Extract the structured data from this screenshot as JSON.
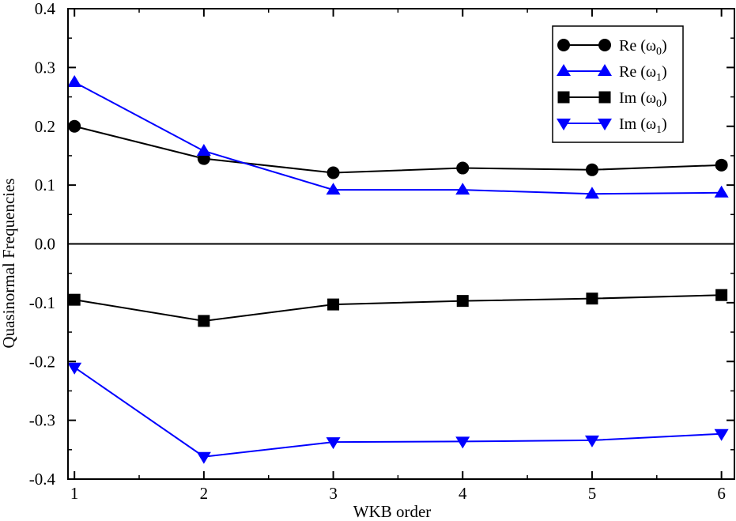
{
  "chart_data": {
    "type": "line",
    "title": "",
    "xlabel": "WKB order",
    "ylabel": "Quasinormal Frequencies",
    "x": [
      1,
      2,
      3,
      4,
      5,
      6
    ],
    "xlim": [
      0.95,
      6.1
    ],
    "ylim": [
      -0.4,
      0.4
    ],
    "xticks": [
      "1",
      "2",
      "3",
      "4",
      "5",
      "6"
    ],
    "yticks": [
      "0.4",
      "0.3",
      "0.2",
      "0.1",
      "0.0",
      "-0.1",
      "-0.2",
      "-0.3",
      "-0.4"
    ],
    "zero_line": true,
    "grid": false,
    "legend_position": "top-right",
    "series": [
      {
        "name": "Re (ω0)",
        "legend_main": "Re (ω",
        "legend_sub": "0",
        "legend_close": ")",
        "color": "#000000",
        "marker": "circle",
        "values": [
          0.2,
          0.145,
          0.121,
          0.129,
          0.126,
          0.134
        ]
      },
      {
        "name": "Re (ω1)",
        "legend_main": "Re (ω",
        "legend_sub": "1",
        "legend_close": ")",
        "color": "#0000ff",
        "marker": "triangle-up",
        "values": [
          0.275,
          0.158,
          0.092,
          0.092,
          0.085,
          0.087
        ]
      },
      {
        "name": "Im (ω0)",
        "legend_main": "Im (ω",
        "legend_sub": "0",
        "legend_close": ")",
        "color": "#000000",
        "marker": "square",
        "values": [
          -0.095,
          -0.131,
          -0.103,
          -0.097,
          -0.093,
          -0.087
        ]
      },
      {
        "name": "Im (ω1)",
        "legend_main": "Im (ω",
        "legend_sub": "1",
        "legend_close": ")",
        "color": "#0000ff",
        "marker": "triangle-down",
        "values": [
          -0.21,
          -0.362,
          -0.337,
          -0.336,
          -0.334,
          -0.323
        ]
      }
    ]
  }
}
